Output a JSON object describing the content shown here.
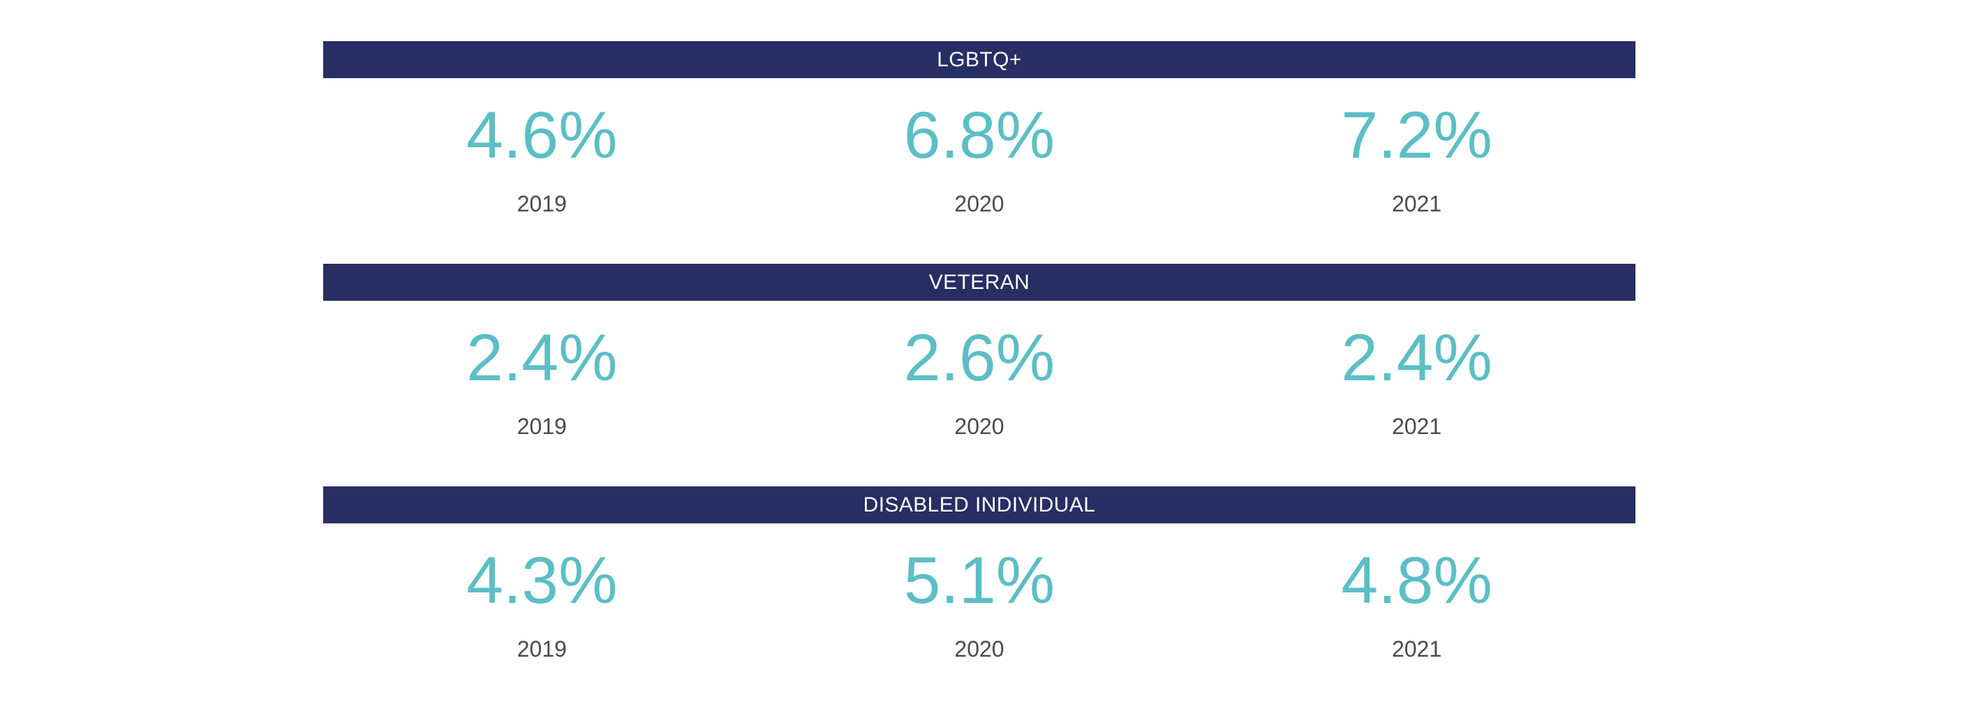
{
  "colors": {
    "page_bg": "#ffffff",
    "header_bg": "#272e63",
    "header_text": "#ffffff",
    "value_text": "#5cbec6",
    "year_text": "#4a4a4e"
  },
  "sections": [
    {
      "title": "LGBTQ+",
      "stats": [
        {
          "value": "4.6%",
          "year": "2019"
        },
        {
          "value": "6.8%",
          "year": "2020"
        },
        {
          "value": "7.2%",
          "year": "2021"
        }
      ]
    },
    {
      "title": "VETERAN",
      "stats": [
        {
          "value": "2.4%",
          "year": "2019"
        },
        {
          "value": "2.6%",
          "year": "2020"
        },
        {
          "value": "2.4%",
          "year": "2021"
        }
      ]
    },
    {
      "title": "DISABLED INDIVIDUAL",
      "stats": [
        {
          "value": "4.3%",
          "year": "2019"
        },
        {
          "value": "5.1%",
          "year": "2020"
        },
        {
          "value": "4.8%",
          "year": "2021"
        }
      ]
    }
  ],
  "chart_data": {
    "type": "table",
    "title": "",
    "categories": [
      "2019",
      "2020",
      "2021"
    ],
    "unit": "%",
    "series": [
      {
        "name": "LGBTQ+",
        "values": [
          4.6,
          6.8,
          7.2
        ]
      },
      {
        "name": "VETERAN",
        "values": [
          2.4,
          2.6,
          2.4
        ]
      },
      {
        "name": "DISABLED INDIVIDUAL",
        "values": [
          4.3,
          5.1,
          4.8
        ]
      }
    ],
    "layout_hints": {
      "grid": false,
      "legend": false,
      "arrangement": "three stacked sections, each with a navy title bar and three year columns"
    }
  }
}
